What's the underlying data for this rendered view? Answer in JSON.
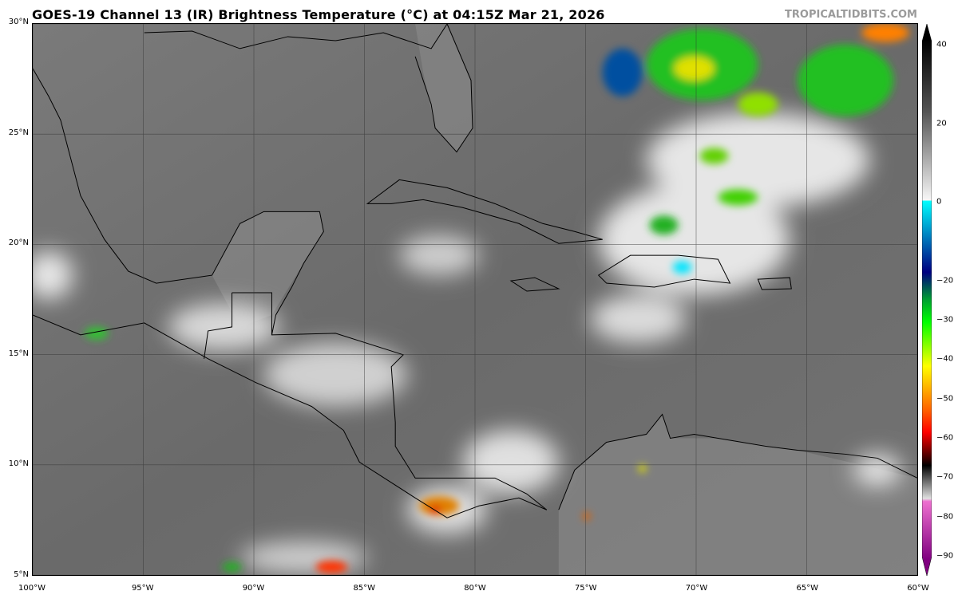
{
  "header": {
    "title": "GOES-19 Channel 13 (IR) Brightness Temperature (°C) at 04:15Z Mar 21, 2026",
    "brand": "TROPICALTIDBITS.COM"
  },
  "map": {
    "lat_labels": [
      "30°N",
      "25°N",
      "20°N",
      "15°N",
      "10°N",
      "5°N"
    ],
    "lon_labels": [
      "100°W",
      "95°W",
      "90°W",
      "85°W",
      "80°W",
      "75°W",
      "70°W",
      "65°W",
      "60°W"
    ],
    "extent": {
      "lon": [
        -100,
        -60
      ],
      "lat": [
        5,
        30
      ]
    },
    "background_color": "#6e6e6e"
  },
  "colorbar": {
    "labels": [
      "40",
      "20",
      "0",
      "−20",
      "−30",
      "−40",
      "−50",
      "−60",
      "−70",
      "−80",
      "−90"
    ],
    "values": [
      40,
      20,
      0,
      -20,
      -30,
      -40,
      -50,
      -60,
      -70,
      -80,
      -90
    ],
    "range": [
      -90,
      40
    ],
    "colors": {
      "warm": "#111111",
      "cold_gray": "#ffffff",
      "cyan": "#00e5ff",
      "blue": "#001a80",
      "green": "#00ff00",
      "yellow": "#ffff00",
      "red": "#ff0000",
      "black": "#000000",
      "magenta": "#e060c0",
      "purple": "#800080"
    }
  }
}
